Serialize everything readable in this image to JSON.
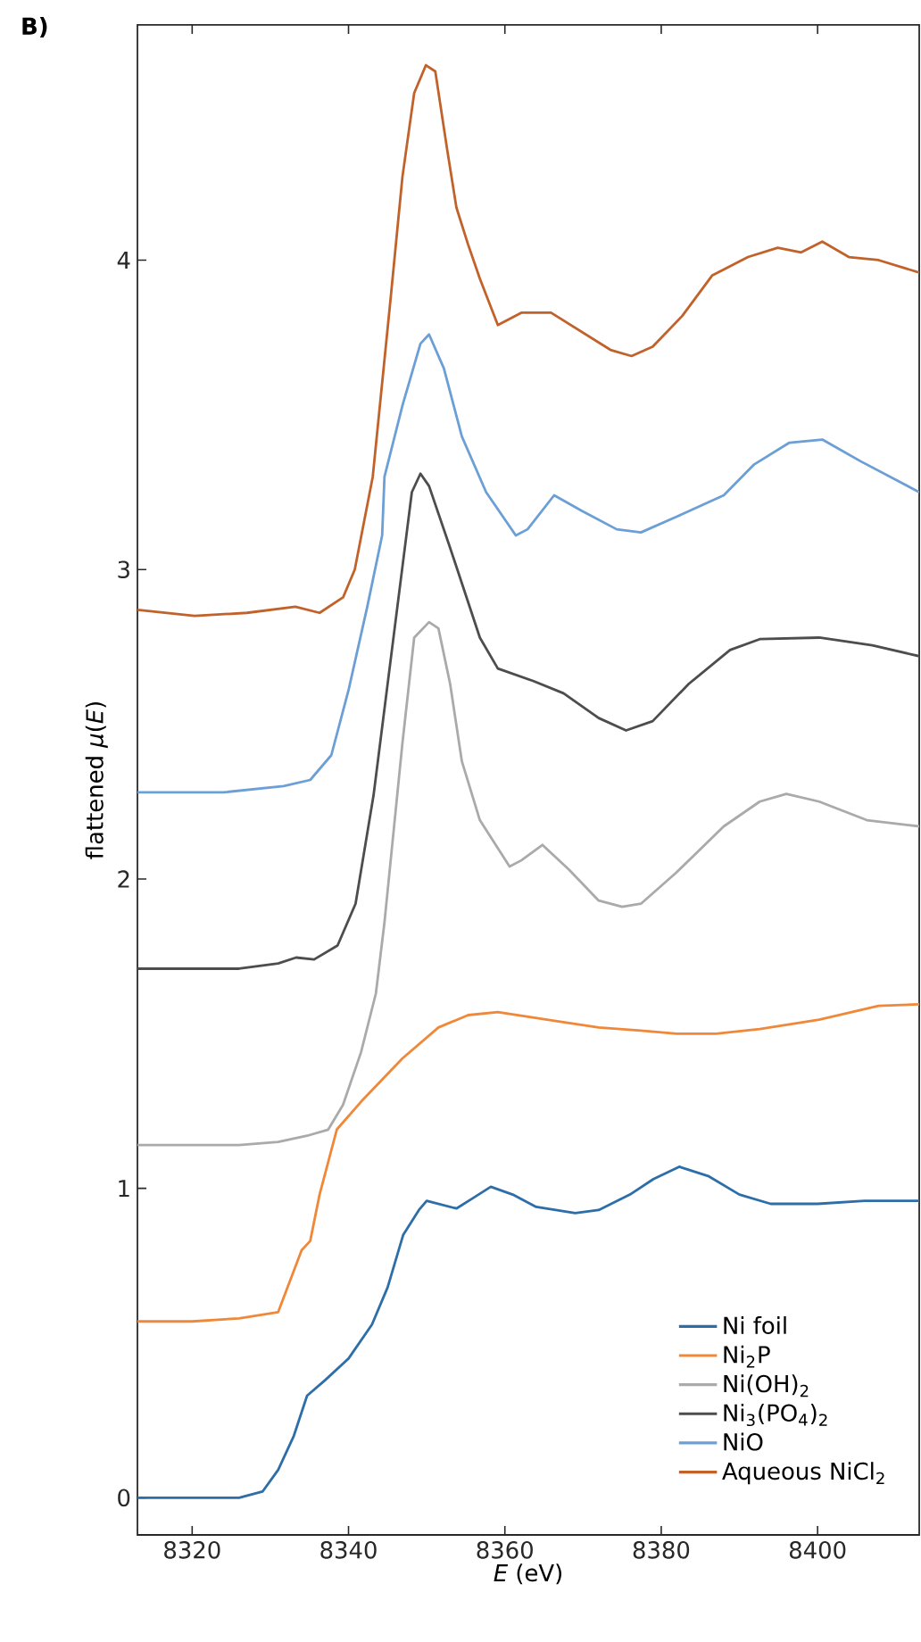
{
  "chart_data": {
    "type": "line",
    "xlabel": "*E* (eV)",
    "ylabel": "flattened *μ*(*E*)",
    "annotations": [
      "B)"
    ],
    "xlim": [
      8313,
      8413
    ],
    "ylim": [
      -0.12,
      4.76
    ],
    "xticks": [
      8320,
      8340,
      8360,
      8380,
      8400
    ],
    "yticks": [
      0,
      1,
      2,
      3,
      4
    ],
    "legend": "bottom right",
    "grid": false,
    "marker": "none",
    "line_style": "solid",
    "series": [
      {
        "name": "Ni foil",
        "color": "#2d6ea8",
        "x": [
          8313,
          8320,
          8326,
          8329,
          8331,
          8333,
          8334.7,
          8337,
          8340,
          8343,
          8345,
          8347,
          8349,
          8350,
          8353.8,
          8356,
          8358.2,
          8361,
          8364,
          8369,
          8372,
          8376,
          8379,
          8382.3,
          8386,
          8390,
          8394,
          8400,
          8406,
          8413
        ],
        "values": [
          0.0,
          0.0,
          0.0,
          0.02,
          0.09,
          0.2,
          0.33,
          0.38,
          0.45,
          0.56,
          0.68,
          0.85,
          0.93,
          0.96,
          0.935,
          0.97,
          1.005,
          0.98,
          0.94,
          0.92,
          0.93,
          0.98,
          1.03,
          1.07,
          1.04,
          0.98,
          0.95,
          0.95,
          0.96,
          0.96
        ]
      },
      {
        "name": "Ni$_{2}$P",
        "color": "#f0883a",
        "x": [
          8313,
          8320,
          8326,
          8331,
          8334,
          8335.1,
          8336.3,
          8338.5,
          8341.6,
          8346.9,
          8351.5,
          8355.3,
          8359.1,
          8366.7,
          8372,
          8377.4,
          8382,
          8387,
          8392.6,
          8400.2,
          8407.8,
          8413
        ],
        "values": [
          0.57,
          0.57,
          0.58,
          0.6,
          0.8,
          0.83,
          0.98,
          1.19,
          1.28,
          1.42,
          1.52,
          1.56,
          1.57,
          1.54,
          1.52,
          1.51,
          1.5,
          1.5,
          1.515,
          1.545,
          1.59,
          1.595
        ]
      },
      {
        "name": "Ni(OH)$_{2}$",
        "color": "#aaaaaa",
        "x": [
          8313,
          8320,
          8326,
          8331,
          8334.7,
          8337.4,
          8339.3,
          8341.6,
          8343.5,
          8344.6,
          8346.9,
          8348.4,
          8350.3,
          8351.5,
          8353,
          8354.5,
          8356.8,
          8360.6,
          8362.1,
          8364.8,
          8368.2,
          8372,
          8375,
          8377.4,
          8381.9,
          8388,
          8392.6,
          8396,
          8400.2,
          8406.3,
          8413
        ],
        "values": [
          1.14,
          1.14,
          1.14,
          1.15,
          1.17,
          1.19,
          1.27,
          1.44,
          1.63,
          1.86,
          2.44,
          2.78,
          2.83,
          2.81,
          2.63,
          2.38,
          2.19,
          2.04,
          2.06,
          2.11,
          2.03,
          1.93,
          1.91,
          1.92,
          2.02,
          2.17,
          2.25,
          2.275,
          2.25,
          2.19,
          2.17
        ]
      },
      {
        "name": "Ni$_{3}$(PO$_{4}$)$_{2}$",
        "color": "#4d4d4d",
        "x": [
          8313,
          8320,
          8326,
          8331,
          8333.3,
          8335.6,
          8338.6,
          8340.9,
          8343.2,
          8345.5,
          8347.4,
          8348.1,
          8349.2,
          8350.3,
          8353,
          8356.8,
          8359.1,
          8363.6,
          8367.5,
          8372,
          8375.5,
          8378.9,
          8383.5,
          8388.8,
          8392.6,
          8400.2,
          8407,
          8413
        ],
        "values": [
          1.71,
          1.71,
          1.71,
          1.727,
          1.746,
          1.74,
          1.785,
          1.92,
          2.27,
          2.73,
          3.11,
          3.25,
          3.31,
          3.27,
          3.07,
          2.78,
          2.68,
          2.64,
          2.6,
          2.52,
          2.48,
          2.51,
          2.63,
          2.74,
          2.775,
          2.78,
          2.755,
          2.72
        ]
      },
      {
        "name": "NiO",
        "color": "#6b9fd6",
        "x": [
          8313,
          8324,
          8331.7,
          8335.1,
          8337.8,
          8340,
          8342.4,
          8344.3,
          8344.6,
          8346.9,
          8349.2,
          8350.3,
          8352.2,
          8354.5,
          8357.6,
          8361.4,
          8362.9,
          8366.3,
          8369.8,
          8374.3,
          8377.4,
          8381.9,
          8388,
          8391.9,
          8396.4,
          8400.6,
          8405.5,
          8413
        ],
        "values": [
          2.28,
          2.28,
          2.3,
          2.32,
          2.4,
          2.61,
          2.88,
          3.11,
          3.3,
          3.53,
          3.73,
          3.76,
          3.65,
          3.43,
          3.25,
          3.11,
          3.13,
          3.24,
          3.19,
          3.13,
          3.12,
          3.17,
          3.24,
          3.34,
          3.41,
          3.42,
          3.35,
          3.25
        ]
      },
      {
        "name": "Aqueous NiCl$_{2}$",
        "color": "#c2622b",
        "x": [
          8313,
          8320.3,
          8327,
          8333.2,
          8336.3,
          8339.3,
          8340.8,
          8343.1,
          8345.4,
          8346.9,
          8348.4,
          8349.9,
          8351.1,
          8352.6,
          8353.8,
          8355.3,
          8356.8,
          8359.1,
          8362.1,
          8365.9,
          8369.7,
          8373.5,
          8376.2,
          8378.9,
          8382.7,
          8386.5,
          8391.1,
          8394.9,
          8397.9,
          8400.6,
          8404,
          8407.8,
          8413
        ],
        "values": [
          2.87,
          2.85,
          2.86,
          2.88,
          2.86,
          2.91,
          3.0,
          3.3,
          3.88,
          4.27,
          4.54,
          4.63,
          4.61,
          4.36,
          4.17,
          4.05,
          3.94,
          3.79,
          3.83,
          3.83,
          3.77,
          3.71,
          3.69,
          3.72,
          3.82,
          3.95,
          4.01,
          4.04,
          4.025,
          4.06,
          4.01,
          4.0,
          3.96
        ]
      }
    ]
  }
}
